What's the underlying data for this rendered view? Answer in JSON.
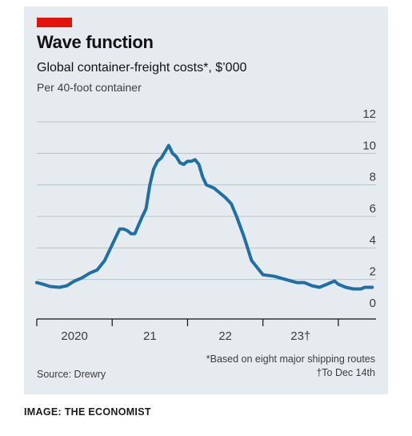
{
  "header": {
    "title": "Wave function",
    "subtitle": "Global container-freight costs*, $’000",
    "unit": "Per 40-foot container"
  },
  "footer": {
    "footnote1": "*Based on eight major shipping routes",
    "footnote2": "†To Dec 14th",
    "source": "Source: Drewry",
    "credit": "IMAGE: THE ECONOMIST"
  },
  "colors": {
    "accent": "#e3120b",
    "line": "#1f6fa6",
    "background": "#e5ebef",
    "grid": "#b7c4cc"
  },
  "chart_data": {
    "type": "line",
    "title": "Wave function",
    "subtitle": "Global container-freight costs*, $’000",
    "ylabel": "Per 40-foot container",
    "ylim": [
      0,
      12
    ],
    "yticks": [
      0,
      2,
      4,
      6,
      8,
      10,
      12
    ],
    "y_axis_position": "right",
    "grid": true,
    "xlim": [
      2019.5,
      2024.0
    ],
    "xticks": [
      {
        "label": "2020",
        "x": 2020.0
      },
      {
        "label": "21",
        "x": 2021.0
      },
      {
        "label": "22",
        "x": 2022.0
      },
      {
        "label": "23†",
        "x": 2023.0
      }
    ],
    "series": [
      {
        "x": [
          2019.5,
          2019.58,
          2019.68,
          2019.8,
          2019.9,
          2020.0,
          2020.1,
          2020.2,
          2020.3,
          2020.4,
          2020.5,
          2020.6,
          2020.65,
          2020.7,
          2020.75,
          2020.8,
          2020.9,
          2020.95,
          2021.0,
          2021.05,
          2021.1,
          2021.15,
          2021.2,
          2021.25,
          2021.3,
          2021.35,
          2021.4,
          2021.45,
          2021.5,
          2021.55,
          2021.6,
          2021.65,
          2021.7,
          2021.75,
          2021.8,
          2021.85,
          2021.9,
          2022.0,
          2022.08,
          2022.15,
          2022.25,
          2022.35,
          2022.5,
          2022.65,
          2022.8,
          2022.95,
          2023.05,
          2023.15,
          2023.25,
          2023.35,
          2023.45,
          2023.5,
          2023.6,
          2023.7,
          2023.8,
          2023.85,
          2023.95
        ],
        "values": [
          1.8,
          1.7,
          1.55,
          1.5,
          1.6,
          1.9,
          2.1,
          2.4,
          2.6,
          3.2,
          4.2,
          5.2,
          5.2,
          5.1,
          4.9,
          4.9,
          6.0,
          6.5,
          8.0,
          9.0,
          9.5,
          9.7,
          10.1,
          10.5,
          10.0,
          9.8,
          9.4,
          9.3,
          9.5,
          9.5,
          9.6,
          9.3,
          8.5,
          8.0,
          7.9,
          7.8,
          7.6,
          7.2,
          6.8,
          6.0,
          4.7,
          3.2,
          2.3,
          2.2,
          2.0,
          1.8,
          1.8,
          1.6,
          1.5,
          1.7,
          1.9,
          1.7,
          1.5,
          1.4,
          1.4,
          1.5,
          1.5
        ]
      }
    ]
  }
}
